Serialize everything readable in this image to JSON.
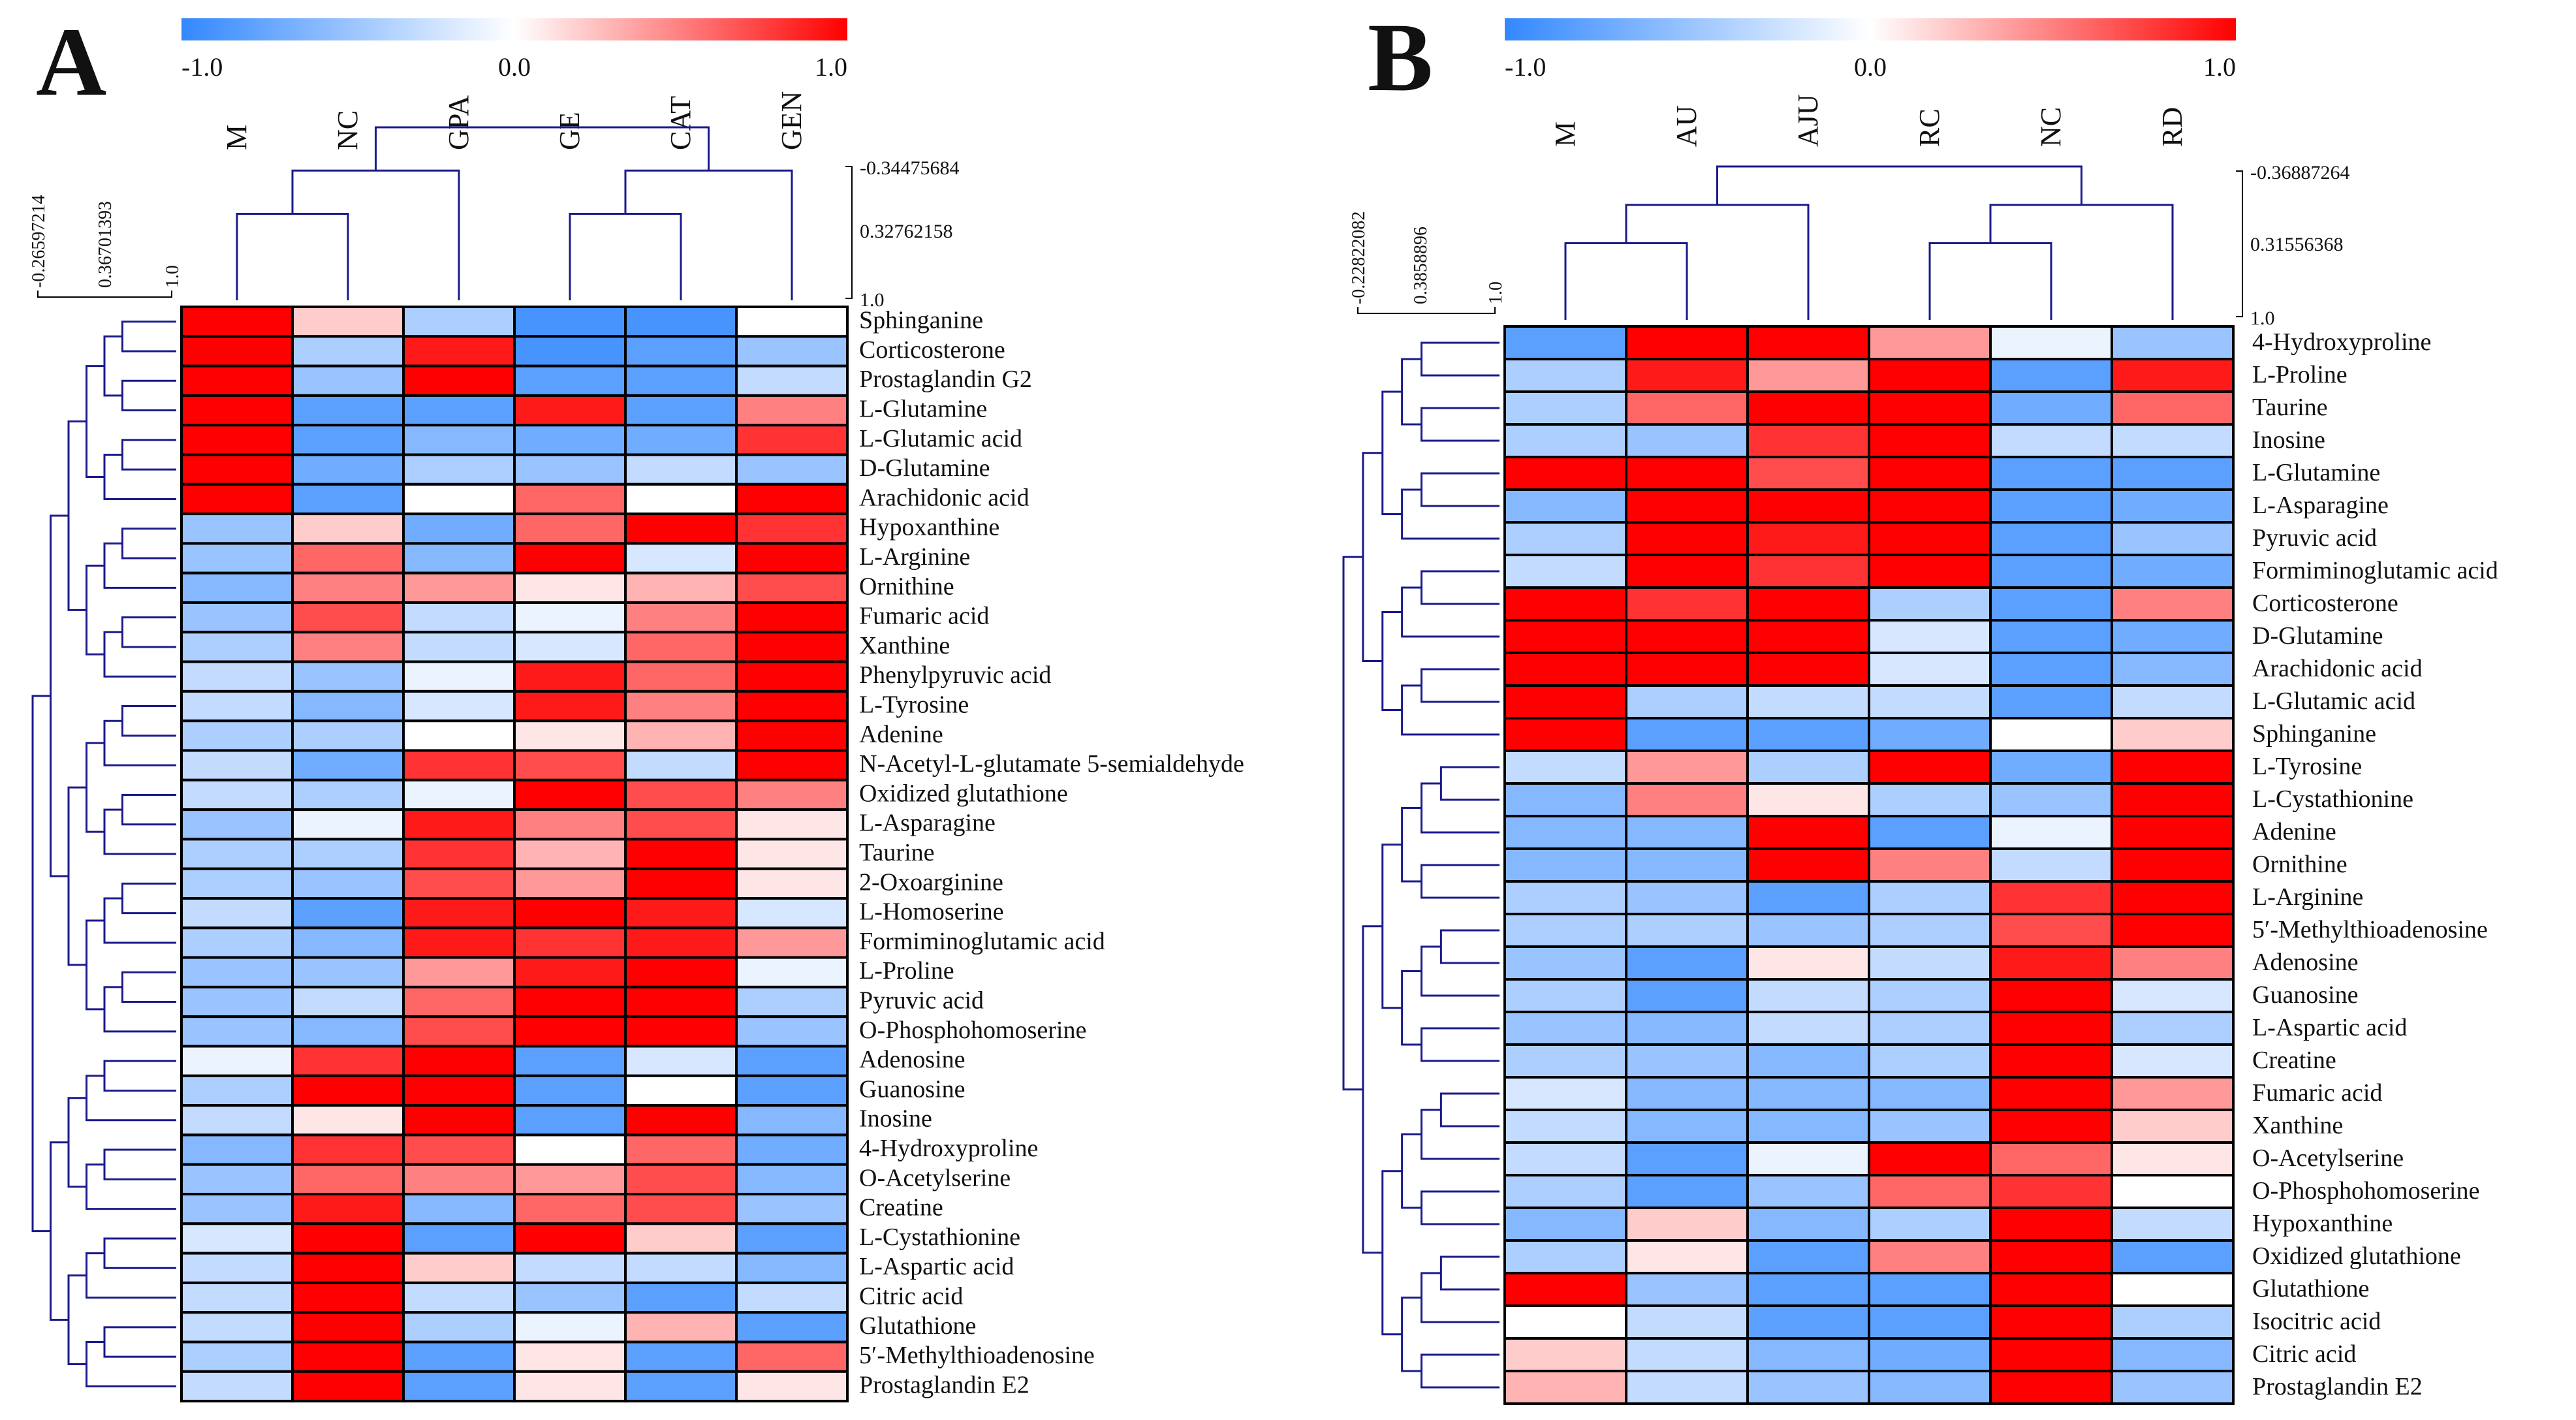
{
  "colors": {
    "low": "#3388ff",
    "mid": "#ffffff",
    "high": "#ff0000"
  },
  "chart_data": [
    {
      "type": "heatmap",
      "panel": "A",
      "colorbar": {
        "min": "-1.0",
        "mid": "0.0",
        "max": "1.0"
      },
      "col_scale_ticks": [
        "-0.34475684",
        "0.32762158",
        "1.0"
      ],
      "row_scale_ticks": [
        "-0.26597214",
        "0.36701393",
        "1.0"
      ],
      "columns": [
        "M",
        "NC",
        "GPA",
        "GE",
        "CAT",
        "GEN"
      ],
      "rows": [
        "Sphinganine",
        "Corticosterone",
        "Prostaglandin G2",
        "L-Glutamine",
        "L-Glutamic acid",
        "D-Glutamine",
        "Arachidonic acid",
        "Hypoxanthine",
        "L-Arginine",
        "Ornithine",
        "Fumaric acid",
        "Xanthine",
        "Phenylpyruvic acid",
        "L-Tyrosine",
        "Adenine",
        "N-Acetyl-L-glutamate 5-semialdehyde",
        "Oxidized glutathione",
        "L-Asparagine",
        "Taurine",
        "2-Oxoarginine",
        "L-Homoserine",
        "Formiminoglutamic acid",
        "L-Proline",
        "Pyruvic acid",
        "O-Phosphohomoserine",
        "Adenosine",
        "Guanosine",
        "Inosine",
        "4-Hydroxyproline",
        "O-Acetylserine",
        "Creatine",
        "L-Cystathionine",
        "L-Aspartic acid",
        "Citric acid",
        "Glutathione",
        "5′-Methylthioadenosine",
        "Prostaglandin E2"
      ],
      "values": [
        [
          1.0,
          0.2,
          -0.4,
          -0.9,
          -0.9,
          0.0
        ],
        [
          1.0,
          -0.4,
          0.9,
          -0.9,
          -0.8,
          -0.5
        ],
        [
          1.0,
          -0.5,
          1.0,
          -0.8,
          -0.8,
          -0.3
        ],
        [
          1.0,
          -0.8,
          -0.8,
          0.9,
          -0.8,
          0.5
        ],
        [
          1.0,
          -0.8,
          -0.6,
          -0.7,
          -0.7,
          0.8
        ],
        [
          1.0,
          -0.7,
          -0.4,
          -0.5,
          -0.3,
          -0.5
        ],
        [
          1.0,
          -0.8,
          0.0,
          0.6,
          0.0,
          1.0
        ],
        [
          -0.5,
          0.2,
          -0.7,
          0.6,
          1.0,
          0.8
        ],
        [
          -0.5,
          0.6,
          -0.6,
          1.0,
          -0.2,
          1.0
        ],
        [
          -0.6,
          0.5,
          0.4,
          0.1,
          0.3,
          0.7
        ],
        [
          -0.5,
          0.7,
          -0.3,
          -0.1,
          0.5,
          1.0
        ],
        [
          -0.4,
          0.5,
          -0.3,
          -0.2,
          0.6,
          1.0
        ],
        [
          -0.3,
          -0.5,
          -0.1,
          0.9,
          0.6,
          1.0
        ],
        [
          -0.3,
          -0.6,
          -0.2,
          0.9,
          0.5,
          1.0
        ],
        [
          -0.4,
          -0.4,
          0.0,
          0.1,
          0.3,
          1.0
        ],
        [
          -0.3,
          -0.7,
          0.8,
          0.7,
          -0.3,
          1.0
        ],
        [
          -0.3,
          -0.4,
          -0.1,
          1.0,
          0.7,
          0.5
        ],
        [
          -0.5,
          -0.1,
          0.9,
          0.5,
          0.7,
          0.1
        ],
        [
          -0.4,
          -0.4,
          0.8,
          0.3,
          1.0,
          0.1
        ],
        [
          -0.4,
          -0.5,
          0.7,
          0.4,
          1.0,
          0.1
        ],
        [
          -0.3,
          -0.8,
          0.9,
          1.0,
          0.9,
          -0.2
        ],
        [
          -0.4,
          -0.6,
          0.9,
          0.8,
          0.9,
          0.4
        ],
        [
          -0.5,
          -0.5,
          0.4,
          0.9,
          1.0,
          -0.1
        ],
        [
          -0.5,
          -0.3,
          0.6,
          1.0,
          1.0,
          -0.4
        ],
        [
          -0.5,
          -0.6,
          0.7,
          1.0,
          1.0,
          -0.5
        ],
        [
          -0.1,
          0.8,
          1.0,
          -0.8,
          -0.2,
          -0.8
        ],
        [
          -0.4,
          1.0,
          1.0,
          -0.8,
          0.0,
          -0.8
        ],
        [
          -0.3,
          0.1,
          1.0,
          -0.8,
          1.0,
          -0.6
        ],
        [
          -0.6,
          0.8,
          0.7,
          0.0,
          0.6,
          -0.7
        ],
        [
          -0.5,
          0.6,
          0.5,
          0.4,
          0.7,
          -0.6
        ],
        [
          -0.5,
          0.9,
          -0.6,
          0.6,
          0.7,
          -0.5
        ],
        [
          -0.2,
          1.0,
          -0.8,
          1.0,
          0.2,
          -0.8
        ],
        [
          -0.3,
          1.0,
          0.2,
          -0.3,
          -0.3,
          -0.6
        ],
        [
          -0.3,
          1.0,
          -0.3,
          -0.5,
          -0.8,
          -0.3
        ],
        [
          -0.3,
          1.0,
          -0.4,
          -0.1,
          0.3,
          -0.8
        ],
        [
          -0.4,
          1.0,
          -0.8,
          0.1,
          -0.8,
          0.6
        ],
        [
          -0.3,
          1.0,
          -0.8,
          0.1,
          -0.8,
          0.1
        ]
      ]
    },
    {
      "type": "heatmap",
      "panel": "B",
      "colorbar": {
        "min": "-1.0",
        "mid": "0.0",
        "max": "1.0"
      },
      "col_scale_ticks": [
        "-0.36887264",
        "0.31556368",
        "1.0"
      ],
      "row_scale_ticks": [
        "-0.22822082",
        "0.3858896",
        "1.0"
      ],
      "columns": [
        "M",
        "AU",
        "AJU",
        "RC",
        "NC",
        "RD"
      ],
      "rows": [
        "4-Hydroxyproline",
        "L-Proline",
        "Taurine",
        "Inosine",
        "L-Glutamine",
        "L-Asparagine",
        "Pyruvic acid",
        "Formiminoglutamic acid",
        "Corticosterone",
        "D-Glutamine",
        "Arachidonic acid",
        "L-Glutamic acid",
        "Sphinganine",
        "L-Tyrosine",
        "L-Cystathionine",
        "Adenine",
        "Ornithine",
        "L-Arginine",
        "5′-Methylthioadenosine",
        "Adenosine",
        "Guanosine",
        "L-Aspartic acid",
        "Creatine",
        "Fumaric acid",
        "Xanthine",
        "O-Acetylserine",
        "O-Phosphohomoserine",
        "Hypoxanthine",
        "Oxidized glutathione",
        "Glutathione",
        "Isocitric acid",
        "Citric acid",
        "Prostaglandin E2"
      ],
      "values": [
        [
          -0.8,
          1.0,
          1.0,
          0.4,
          -0.1,
          -0.5
        ],
        [
          -0.4,
          0.9,
          0.4,
          1.0,
          -0.8,
          0.9
        ],
        [
          -0.4,
          0.6,
          1.0,
          1.0,
          -0.7,
          0.6
        ],
        [
          -0.4,
          -0.5,
          0.8,
          1.0,
          -0.3,
          -0.3
        ],
        [
          1.0,
          1.0,
          0.7,
          1.0,
          -0.8,
          -0.8
        ],
        [
          -0.6,
          1.0,
          1.0,
          1.0,
          -0.8,
          -0.7
        ],
        [
          -0.4,
          1.0,
          0.9,
          1.0,
          -0.8,
          -0.5
        ],
        [
          -0.3,
          1.0,
          0.8,
          1.0,
          -0.8,
          -0.7
        ],
        [
          1.0,
          0.8,
          1.0,
          -0.4,
          -0.8,
          0.5
        ],
        [
          1.0,
          1.0,
          1.0,
          -0.2,
          -0.8,
          -0.7
        ],
        [
          1.0,
          1.0,
          1.0,
          -0.2,
          -0.8,
          -0.6
        ],
        [
          1.0,
          -0.4,
          -0.3,
          -0.3,
          -0.8,
          -0.3
        ],
        [
          1.0,
          -0.8,
          -0.8,
          -0.7,
          0.0,
          0.2
        ],
        [
          -0.3,
          0.4,
          -0.4,
          1.0,
          -0.7,
          1.0
        ],
        [
          -0.6,
          0.5,
          0.1,
          -0.4,
          -0.5,
          1.0
        ],
        [
          -0.6,
          -0.6,
          1.0,
          -0.8,
          -0.1,
          1.0
        ],
        [
          -0.6,
          -0.6,
          1.0,
          0.5,
          -0.3,
          1.0
        ],
        [
          -0.4,
          -0.5,
          -0.8,
          -0.4,
          0.8,
          1.0
        ],
        [
          -0.4,
          -0.4,
          -0.5,
          -0.4,
          0.7,
          1.0
        ],
        [
          -0.5,
          -0.8,
          0.1,
          -0.3,
          0.9,
          0.5
        ],
        [
          -0.4,
          -0.8,
          -0.3,
          -0.4,
          1.0,
          -0.2
        ],
        [
          -0.5,
          -0.6,
          -0.3,
          -0.4,
          1.0,
          -0.4
        ],
        [
          -0.4,
          -0.5,
          -0.6,
          -0.4,
          1.0,
          -0.2
        ],
        [
          -0.2,
          -0.6,
          -0.6,
          -0.6,
          1.0,
          0.4
        ],
        [
          -0.3,
          -0.6,
          -0.6,
          -0.5,
          1.0,
          0.2
        ],
        [
          -0.3,
          -0.8,
          -0.1,
          1.0,
          0.6,
          0.1
        ],
        [
          -0.4,
          -0.8,
          -0.5,
          0.6,
          0.8,
          0.0
        ],
        [
          -0.6,
          0.2,
          -0.6,
          -0.4,
          1.0,
          -0.3
        ],
        [
          -0.4,
          0.1,
          -0.8,
          0.5,
          1.0,
          -0.8
        ],
        [
          1.0,
          -0.5,
          -0.8,
          -0.8,
          1.0,
          0.0
        ],
        [
          0.0,
          -0.3,
          -0.8,
          -0.8,
          1.0,
          -0.4
        ],
        [
          0.2,
          -0.3,
          -0.6,
          -0.7,
          1.0,
          -0.6
        ],
        [
          0.3,
          -0.3,
          -0.5,
          -0.6,
          1.0,
          -0.5
        ]
      ]
    }
  ]
}
